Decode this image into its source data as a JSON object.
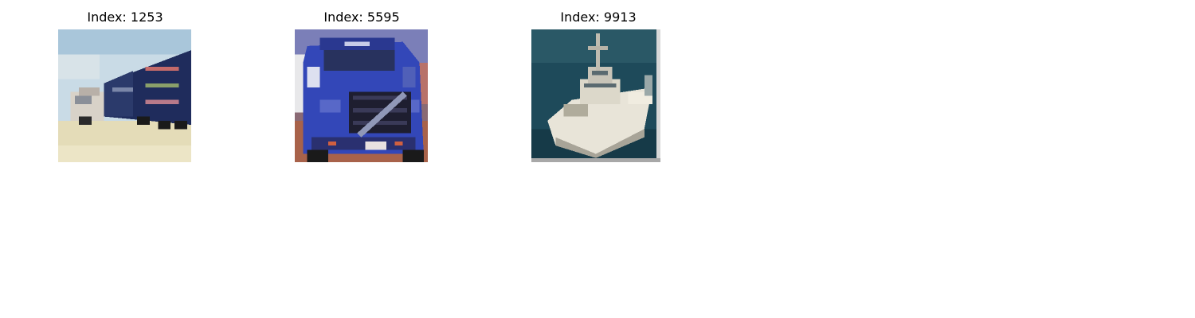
{
  "panels": [
    {
      "title": "Index: 1253",
      "subject": "truck"
    },
    {
      "title": "Index: 5595",
      "subject": "truck"
    },
    {
      "title": "Index: 9913",
      "subject": "ship"
    }
  ]
}
